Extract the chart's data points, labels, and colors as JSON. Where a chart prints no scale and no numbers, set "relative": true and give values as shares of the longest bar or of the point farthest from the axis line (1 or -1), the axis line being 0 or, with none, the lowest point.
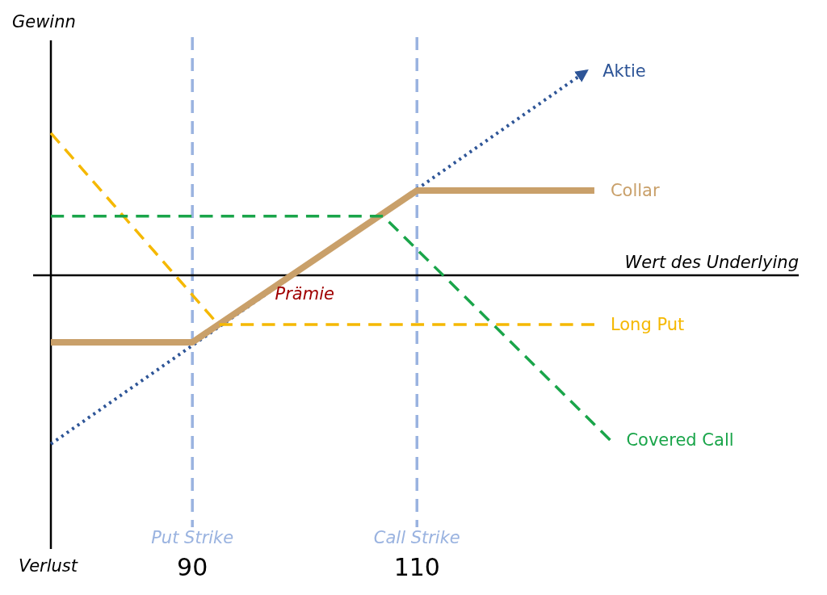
{
  "chart_data": {
    "type": "line",
    "relative": true,
    "ylabel": "Gewinn",
    "xlabel": "Wert des Underlying",
    "xlim": [
      77.4,
      144
    ],
    "xticks": [
      90,
      110
    ],
    "legend": "right",
    "annotations": [
      "Prämie",
      "Verlust"
    ],
    "ref_lines": [
      {
        "axis": "x",
        "value": 90,
        "label": "Put Strike",
        "color": "#9ab3e0",
        "line_style": "dashed"
      },
      {
        "axis": "x",
        "value": 110,
        "label": "Call Strike",
        "color": "#9ab3e0",
        "line_style": "dashed"
      }
    ],
    "series": [
      {
        "name": "Aktie",
        "color": "#2e5597",
        "line_style": "dotted",
        "x": [
          77.4,
          125.1
        ],
        "values": [
          -0.826,
          1
        ]
      },
      {
        "name": "Collar",
        "color": "#c9a06a",
        "line_style": "solid",
        "x": [
          77.4,
          90,
          110,
          125.8
        ],
        "values": [
          -0.328,
          -0.328,
          0.415,
          0.415
        ]
      },
      {
        "name": "Long Put",
        "color": "#f5b800",
        "line_style": "dashed",
        "x": [
          77.4,
          92.3,
          125.8
        ],
        "values": [
          0.696,
          -0.241,
          -0.241
        ]
      },
      {
        "name": "Covered Call",
        "color": "#1aa54a",
        "line_style": "dashed",
        "x": [
          77.4,
          107,
          127.2
        ],
        "values": [
          0.289,
          0.289,
          -0.806
        ]
      }
    ]
  }
}
